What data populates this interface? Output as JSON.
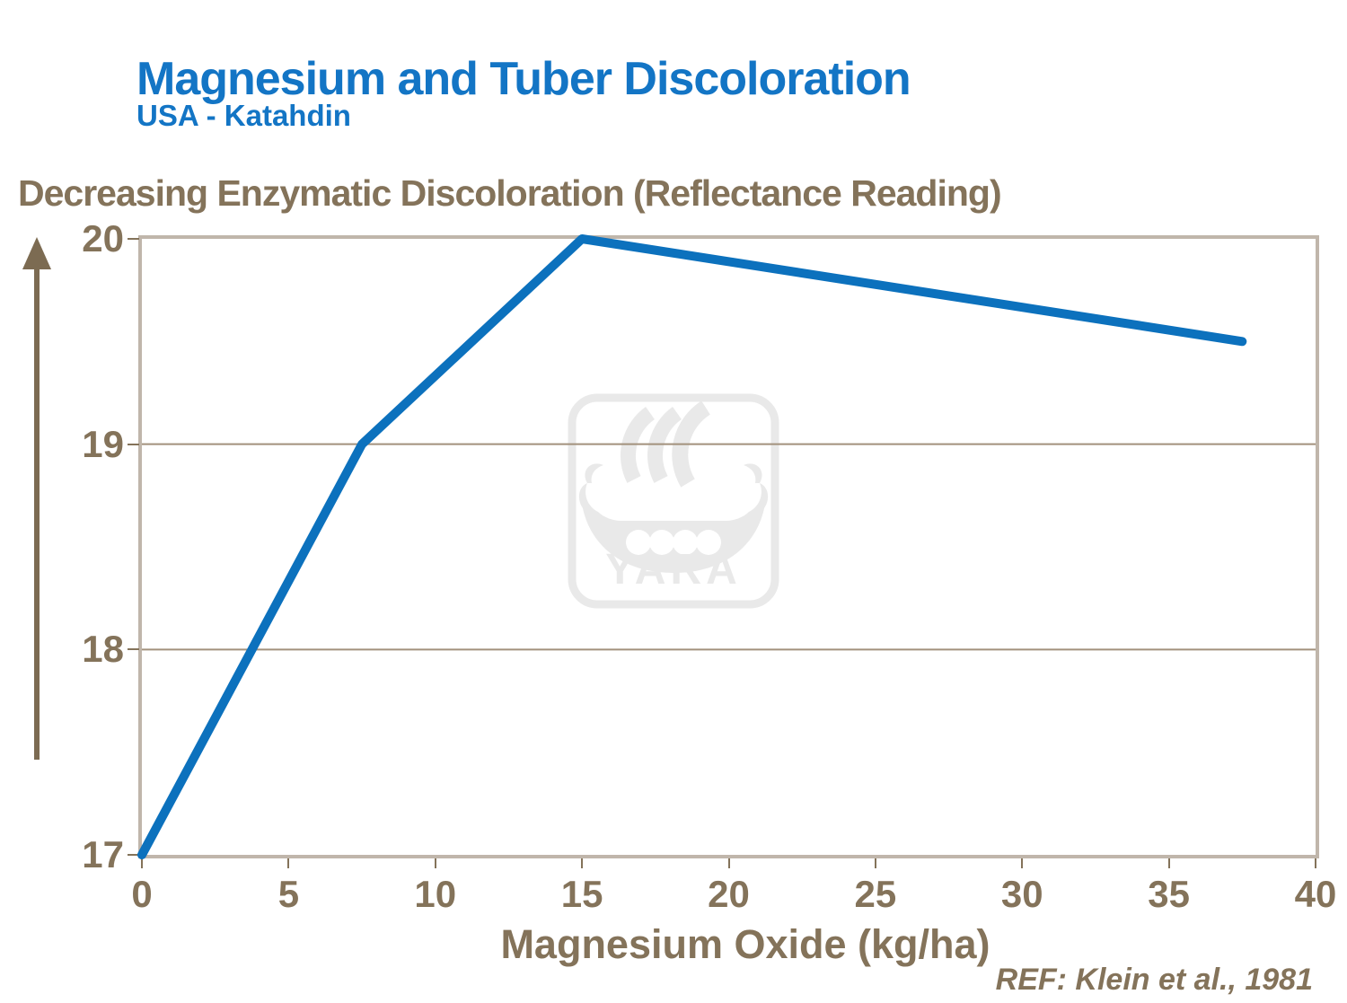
{
  "title": "Magnesium and Tuber Discoloration",
  "subtitle": "USA - Katahdin",
  "reference": "REF: Klein et al., 1981",
  "watermark": {
    "text": "YARA"
  },
  "colors": {
    "title_blue": "#1375C5",
    "line_blue": "#0C71BD",
    "text_brown": "#84735A",
    "frame_tan": "#C0B6AB",
    "grid_tan": "#A2917C",
    "arrow_brown": "#7C6B52",
    "watermark_gray": "#E9E9E9"
  },
  "chart_data": {
    "type": "line",
    "title": "Magnesium and Tuber Discoloration",
    "subtitle": "USA - Katahdin",
    "xlabel": "Magnesium Oxide (kg/ha)",
    "ylabel": "Decreasing Enzymatic Discoloration (Reflectance Reading)",
    "series": [
      {
        "name": "Reflectance reading",
        "color": "#0C71BD",
        "points": [
          [
            0,
            17
          ],
          [
            7.5,
            19
          ],
          [
            15,
            20
          ],
          [
            37.5,
            19.5
          ]
        ]
      }
    ],
    "xlim": [
      0,
      40
    ],
    "ylim": [
      17,
      20
    ],
    "x_ticks": [
      0,
      5,
      10,
      15,
      20,
      25,
      30,
      35,
      40
    ],
    "y_ticks": [
      17,
      18,
      19,
      20
    ],
    "grid": "horizontal-y-only",
    "legend": "none"
  }
}
